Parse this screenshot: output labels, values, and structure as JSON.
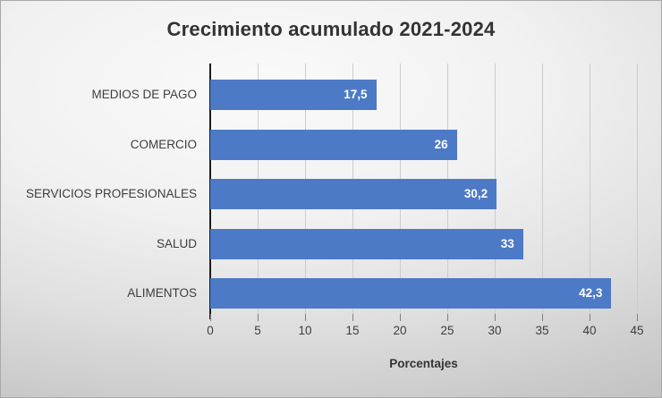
{
  "chart_data": {
    "type": "bar",
    "orientation": "horizontal",
    "title": "Crecimiento acumulado 2021-2024",
    "xlabel": "Porcentajes",
    "ylabel": "",
    "categories": [
      "MEDIOS DE PAGO",
      "COMERCIO",
      "SERVICIOS PROFESIONALES",
      "SALUD",
      "ALIMENTOS"
    ],
    "values": [
      17.5,
      26,
      30.2,
      33,
      42.3
    ],
    "value_labels": [
      "17,5",
      "26",
      "30,2",
      "33",
      "42,3"
    ],
    "xlim": [
      0,
      45
    ],
    "xticks": [
      0,
      5,
      10,
      15,
      20,
      25,
      30,
      35,
      40,
      45
    ],
    "xtick_labels": [
      "0",
      "5",
      "10",
      "15",
      "20",
      "25",
      "30",
      "35",
      "40",
      "45"
    ],
    "grid": "vertical",
    "legend": "none",
    "colors": {
      "bar": "#4d7ac6",
      "value_label": "#ffffff",
      "axis_line": "#1c1c1c",
      "gridline": "#cccccc",
      "tick_mark": "#808080",
      "title_text": "#333333",
      "label_text": "#3d3d3d"
    }
  }
}
